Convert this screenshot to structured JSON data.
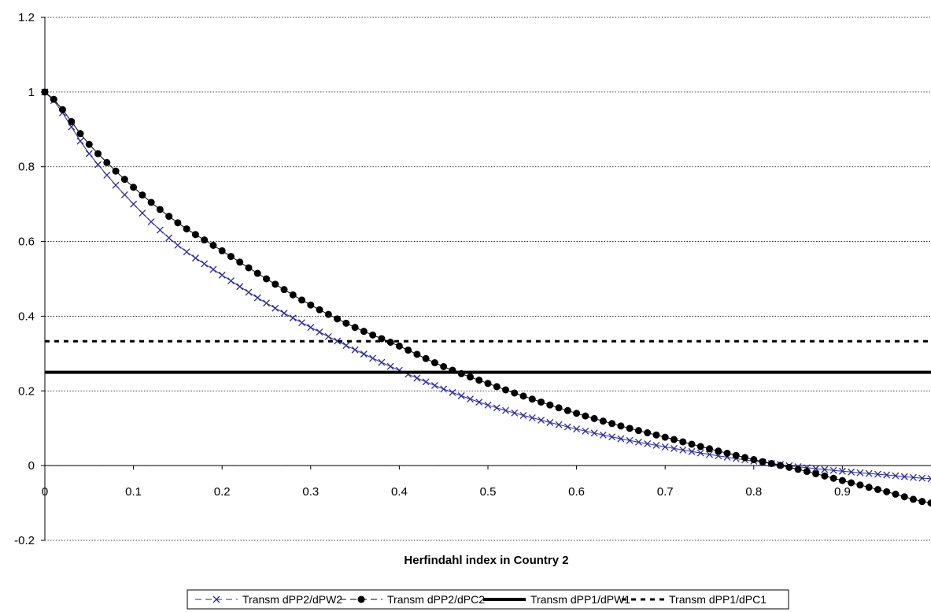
{
  "chart_data": {
    "type": "line",
    "xlabel": "Herfindahl index in Country  2",
    "ylabel": "",
    "xlim": [
      0,
      1
    ],
    "ylim": [
      -0.2,
      1.2
    ],
    "x_ticks": [
      "0",
      "0.1",
      "0.2",
      "0.3",
      "0.4",
      "0.5",
      "0.6",
      "0.7",
      "0.8",
      "0.9"
    ],
    "y_ticks": [
      "1.2",
      "1",
      "0.8",
      "0.6",
      "0.4",
      "0.2",
      "0",
      "-0.2"
    ],
    "grid": "horizontal-dotted",
    "legend_position": "bottom",
    "x": [
      0,
      0.05,
      0.1,
      0.15,
      0.2,
      0.25,
      0.3,
      0.35,
      0.4,
      0.45,
      0.5,
      0.55,
      0.6,
      0.65,
      0.7,
      0.75,
      0.8,
      0.85,
      0.9,
      0.95,
      1.0
    ],
    "series": [
      {
        "name": "Transm dPP2/dPW2",
        "marker": "x",
        "color": "#2b2b9a",
        "values": [
          1.0,
          0.835,
          0.7,
          0.59,
          0.51,
          0.435,
          0.37,
          0.31,
          0.255,
          0.205,
          0.162,
          0.128,
          0.098,
          0.072,
          0.05,
          0.03,
          0.012,
          -0.003,
          -0.015,
          -0.025,
          -0.035
        ]
      },
      {
        "name": "Transm dPP2/dPC2",
        "marker": "circle",
        "color": "#000000",
        "values": [
          1.0,
          0.86,
          0.745,
          0.65,
          0.575,
          0.5,
          0.43,
          0.37,
          0.32,
          0.265,
          0.22,
          0.178,
          0.14,
          0.106,
          0.076,
          0.045,
          0.016,
          -0.01,
          -0.04,
          -0.07,
          -0.1
        ]
      },
      {
        "name": "Transm dPP1/dPW1",
        "marker": "none",
        "line": "solid",
        "color": "#000000",
        "values": [
          0.25,
          0.25,
          0.25,
          0.25,
          0.25,
          0.25,
          0.25,
          0.25,
          0.25,
          0.25,
          0.25,
          0.25,
          0.25,
          0.25,
          0.25,
          0.25,
          0.25,
          0.25,
          0.25,
          0.25,
          0.25
        ]
      },
      {
        "name": "Transm dPP1/dPC1",
        "marker": "none",
        "line": "dashed",
        "color": "#000000",
        "values": [
          0.333,
          0.333,
          0.333,
          0.333,
          0.333,
          0.333,
          0.333,
          0.333,
          0.333,
          0.333,
          0.333,
          0.333,
          0.333,
          0.333,
          0.333,
          0.333,
          0.333,
          0.333,
          0.333,
          0.333,
          0.333
        ]
      }
    ]
  }
}
